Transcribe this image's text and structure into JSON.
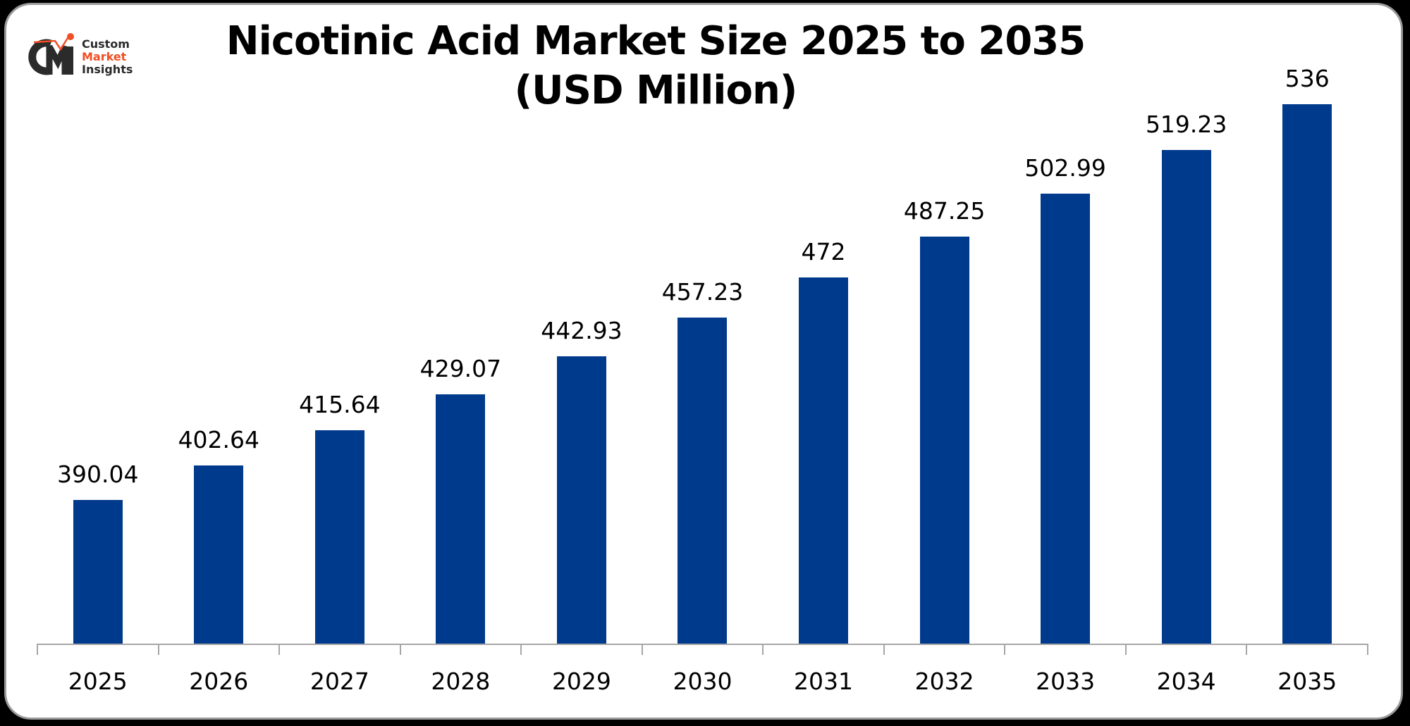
{
  "title": {
    "line1": "Nicotinic Acid Market Size 2025 to 2035",
    "line2": "(USD Million)"
  },
  "logo": {
    "mark": "CMI",
    "line1": "Custom",
    "line2": "Market",
    "line3": "Insights"
  },
  "colors": {
    "bar": "#003a8c",
    "axis": "#a6a6a6",
    "logo_accent": "#f04e23",
    "logo_dark": "#2b2b2b"
  },
  "chart_data": {
    "type": "bar",
    "title": "Nicotinic Acid Market Size 2025 to 2035 (USD Million)",
    "xlabel": "",
    "ylabel": "USD Million",
    "categories": [
      "2025",
      "2026",
      "2027",
      "2028",
      "2029",
      "2030",
      "2031",
      "2032",
      "2033",
      "2034",
      "2035"
    ],
    "values": [
      390.04,
      402.64,
      415.64,
      429.07,
      442.93,
      457.23,
      472,
      487.25,
      502.99,
      519.23,
      536
    ],
    "labels": [
      "390.04",
      "402.64",
      "415.64",
      "429.07",
      "442.93",
      "457.23",
      "472",
      "487.25",
      "502.99",
      "519.23",
      "536"
    ],
    "ylim": [
      337,
      536
    ],
    "grid": false,
    "legend": "none",
    "yaxis_visible": false,
    "data_labels": true
  }
}
